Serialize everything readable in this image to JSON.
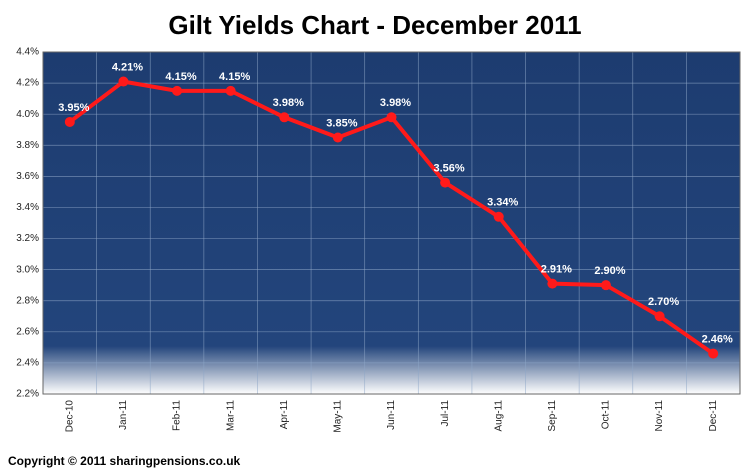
{
  "chart_data": {
    "type": "line",
    "title": "Gilt Yields Chart - December 2011",
    "categories": [
      "Dec-10",
      "Jan-11",
      "Feb-11",
      "Mar-11",
      "Apr-11",
      "May-11",
      "Jun-11",
      "Jul-11",
      "Aug-11",
      "Sep-11",
      "Oct-11",
      "Nov-11",
      "Dec-11"
    ],
    "values": [
      3.95,
      4.21,
      4.15,
      4.15,
      3.98,
      3.85,
      3.98,
      3.56,
      3.34,
      2.91,
      2.9,
      2.7,
      2.46
    ],
    "value_labels": [
      "3.95%",
      "4.21%",
      "4.15%",
      "4.15%",
      "3.98%",
      "3.85%",
      "3.98%",
      "3.56%",
      "3.34%",
      "2.91%",
      "2.90%",
      "2.70%",
      "2.46%"
    ],
    "color": "#ff1a1a",
    "ylim": [
      2.2,
      4.4
    ],
    "yticks": [
      {
        "value": 2.2,
        "label": "2.2%"
      },
      {
        "value": 2.4,
        "label": "2.4%"
      },
      {
        "value": 2.6,
        "label": "2.6%"
      },
      {
        "value": 2.8,
        "label": "2.8%"
      },
      {
        "value": 3.0,
        "label": "3.0%"
      },
      {
        "value": 3.2,
        "label": "3.2%"
      },
      {
        "value": 3.4,
        "label": "3.4%"
      },
      {
        "value": 3.6,
        "label": "3.6%"
      },
      {
        "value": 3.8,
        "label": "3.8%"
      },
      {
        "value": 4.0,
        "label": "4.0%"
      },
      {
        "value": 4.2,
        "label": "4.2%"
      },
      {
        "value": 4.4,
        "label": "4.4%"
      }
    ],
    "grid": true,
    "footer": "Copyright © 2011 sharingpensions.co.uk"
  }
}
